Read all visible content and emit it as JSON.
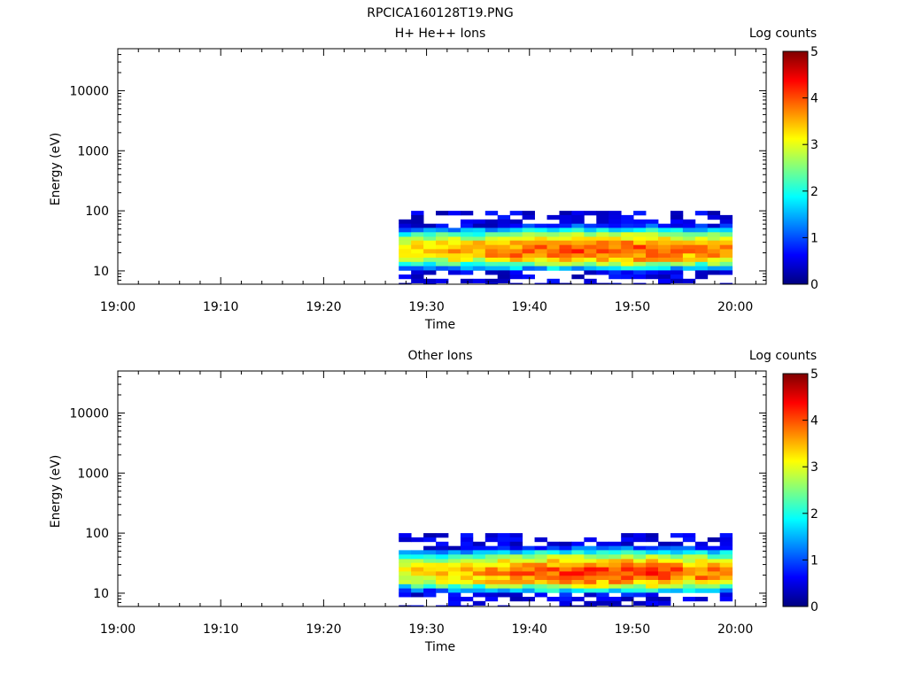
{
  "figure_title": "RPCICA160128T19.PNG",
  "colormap_stops": [
    "#00007f",
    "#0000ff",
    "#0080ff",
    "#00ffff",
    "#80ff80",
    "#ffff00",
    "#ff8000",
    "#ff0000",
    "#7f0000"
  ],
  "chart_data": [
    {
      "type": "heatmap",
      "title": "H+ He++ Ions",
      "xlabel": "Time",
      "ylabel": "Energy (eV)",
      "x_ticks": [
        "19:00",
        "19:10",
        "19:20",
        "19:30",
        "19:40",
        "19:50",
        "20:00"
      ],
      "xlim_minutes": [
        0,
        63
      ],
      "y_ticks": [
        "10",
        "100",
        "1000",
        "10000"
      ],
      "y_scale": "log",
      "ylim_eV": [
        6,
        50000
      ],
      "colorbar_label": "Log counts",
      "colorbar_ticks": [
        "0",
        "1",
        "2",
        "3",
        "4",
        "5"
      ],
      "colorbar_range": [
        0,
        5
      ],
      "data_time_minutes": [
        27.3,
        59.7
      ],
      "data_energy_eV": [
        6,
        100
      ],
      "energy_bins_eV_top_edges": [
        100,
        85,
        72,
        61,
        52,
        44,
        37,
        32,
        27,
        23,
        19.5,
        16.6,
        14.1,
        12,
        10.2,
        8.7,
        7.4,
        6.3
      ],
      "peak_log_counts_by_minute": [
        [
          27.5,
          3.3
        ],
        [
          30,
          3.4
        ],
        [
          33,
          3.5
        ],
        [
          36,
          3.6
        ],
        [
          40,
          3.8
        ],
        [
          43,
          3.9
        ],
        [
          46,
          4.0
        ],
        [
          50,
          4.0
        ],
        [
          53,
          3.9
        ],
        [
          56,
          3.7
        ],
        [
          59,
          3.7
        ]
      ],
      "seed": 11
    },
    {
      "type": "heatmap",
      "title": "Other Ions",
      "xlabel": "Time",
      "ylabel": "Energy (eV)",
      "x_ticks": [
        "19:00",
        "19:10",
        "19:20",
        "19:30",
        "19:40",
        "19:50",
        "20:00"
      ],
      "xlim_minutes": [
        0,
        63
      ],
      "y_ticks": [
        "10",
        "100",
        "1000",
        "10000"
      ],
      "y_scale": "log",
      "ylim_eV": [
        6,
        50000
      ],
      "colorbar_label": "Log counts",
      "colorbar_ticks": [
        "0",
        "1",
        "2",
        "3",
        "4",
        "5"
      ],
      "colorbar_range": [
        0,
        5
      ],
      "data_time_minutes": [
        27.3,
        59.7
      ],
      "data_energy_eV": [
        6,
        100
      ],
      "energy_bins_eV_top_edges": [
        100,
        85,
        72,
        61,
        52,
        44,
        37,
        32,
        27,
        23,
        19.5,
        16.6,
        14.1,
        12,
        10.2,
        8.7,
        7.4,
        6.3
      ],
      "peak_log_counts_by_minute": [
        [
          27.5,
          3.2
        ],
        [
          30,
          3.3
        ],
        [
          33,
          3.5
        ],
        [
          36,
          3.7
        ],
        [
          40,
          3.9
        ],
        [
          43,
          4.0
        ],
        [
          46,
          4.1
        ],
        [
          50,
          4.1
        ],
        [
          53,
          4.1
        ],
        [
          56,
          3.8
        ],
        [
          59,
          3.8
        ]
      ],
      "seed": 29
    }
  ]
}
